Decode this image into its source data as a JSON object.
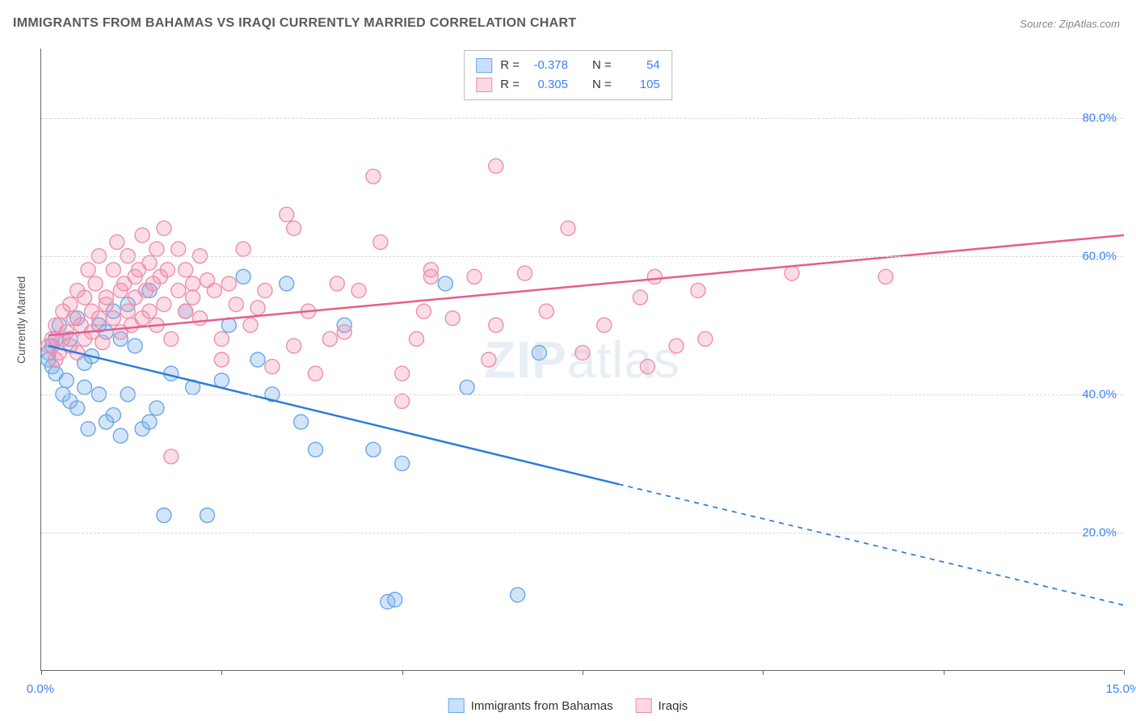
{
  "title": "IMMIGRANTS FROM BAHAMAS VS IRAQI CURRENTLY MARRIED CORRELATION CHART",
  "source_label": "Source:",
  "source_name": "ZipAtlas.com",
  "watermark_bold": "ZIP",
  "watermark_light": "atlas",
  "y_axis_label": "Currently Married",
  "chart": {
    "type": "scatter",
    "xlim": [
      0,
      15
    ],
    "ylim": [
      0,
      90
    ],
    "x_ticks": [
      0,
      2.5,
      5,
      7.5,
      10,
      12.5,
      15
    ],
    "x_tick_labels": {
      "0": "0.0%",
      "15": "15.0%"
    },
    "y_ticks": [
      20,
      40,
      60,
      80
    ],
    "y_tick_labels": {
      "20": "20.0%",
      "40": "40.0%",
      "60": "60.0%",
      "80": "80.0%"
    },
    "background_color": "#ffffff",
    "grid_color": "#d7d7d7",
    "marker_radius": 9,
    "marker_stroke_width": 1.4,
    "line_width": 2.5,
    "series": [
      {
        "name": "Immigrants from Bahamas",
        "fill_color": "rgba(125,180,235,0.35)",
        "stroke_color": "#6ba6e8",
        "line_color": "#2e7dd7",
        "R": "-0.378",
        "N": "54",
        "trend": {
          "x1": 0.1,
          "y1": 47,
          "x2_solid": 8,
          "y2_solid": 27,
          "x2_dash": 15,
          "y2_dash": 9.5
        },
        "points": [
          [
            0.1,
            46
          ],
          [
            0.1,
            45
          ],
          [
            0.15,
            47
          ],
          [
            0.15,
            44
          ],
          [
            0.2,
            48
          ],
          [
            0.2,
            43
          ],
          [
            0.25,
            50
          ],
          [
            0.3,
            40
          ],
          [
            0.35,
            42
          ],
          [
            0.4,
            39
          ],
          [
            0.4,
            48
          ],
          [
            0.5,
            38
          ],
          [
            0.5,
            51
          ],
          [
            0.6,
            41
          ],
          [
            0.6,
            44.5
          ],
          [
            0.65,
            35
          ],
          [
            0.7,
            45.5
          ],
          [
            0.8,
            50
          ],
          [
            0.8,
            40
          ],
          [
            0.9,
            36
          ],
          [
            0.9,
            49
          ],
          [
            1.0,
            37
          ],
          [
            1.0,
            52
          ],
          [
            1.1,
            34
          ],
          [
            1.1,
            48
          ],
          [
            1.2,
            53
          ],
          [
            1.2,
            40
          ],
          [
            1.3,
            47
          ],
          [
            1.4,
            35
          ],
          [
            1.5,
            36
          ],
          [
            1.5,
            55
          ],
          [
            1.7,
            22.5
          ],
          [
            1.6,
            38
          ],
          [
            1.8,
            43
          ],
          [
            2.0,
            52
          ],
          [
            2.1,
            41
          ],
          [
            2.3,
            22.5
          ],
          [
            2.5,
            42
          ],
          [
            2.6,
            50
          ],
          [
            2.8,
            57
          ],
          [
            3.0,
            45
          ],
          [
            3.2,
            40
          ],
          [
            3.4,
            56
          ],
          [
            3.6,
            36
          ],
          [
            3.8,
            32
          ],
          [
            4.2,
            50
          ],
          [
            4.6,
            32
          ],
          [
            4.8,
            10
          ],
          [
            4.9,
            10.3
          ],
          [
            5.0,
            30
          ],
          [
            5.6,
            56
          ],
          [
            5.9,
            41
          ],
          [
            6.9,
            46
          ],
          [
            6.6,
            11
          ]
        ]
      },
      {
        "name": "Iraqis",
        "fill_color": "rgba(244,143,177,0.30)",
        "stroke_color": "#ec8fab",
        "line_color": "#e85d8a",
        "R": "0.305",
        "N": "105",
        "trend": {
          "x1": 0.1,
          "y1": 48.5,
          "x2_solid": 15,
          "y2_solid": 63,
          "x2_dash": 15,
          "y2_dash": 63
        },
        "points": [
          [
            0.1,
            47
          ],
          [
            0.15,
            48
          ],
          [
            0.2,
            45
          ],
          [
            0.2,
            50
          ],
          [
            0.25,
            46
          ],
          [
            0.3,
            52
          ],
          [
            0.3,
            48
          ],
          [
            0.35,
            49
          ],
          [
            0.4,
            53
          ],
          [
            0.4,
            47
          ],
          [
            0.45,
            51
          ],
          [
            0.5,
            55
          ],
          [
            0.5,
            46
          ],
          [
            0.55,
            50
          ],
          [
            0.6,
            54
          ],
          [
            0.6,
            48
          ],
          [
            0.65,
            58
          ],
          [
            0.7,
            52
          ],
          [
            0.7,
            49
          ],
          [
            0.75,
            56
          ],
          [
            0.8,
            51
          ],
          [
            0.8,
            60
          ],
          [
            0.85,
            47.5
          ],
          [
            0.9,
            54
          ],
          [
            0.9,
            53
          ],
          [
            1.0,
            58
          ],
          [
            1.0,
            51
          ],
          [
            1.05,
            62
          ],
          [
            1.1,
            55
          ],
          [
            1.1,
            49
          ],
          [
            1.15,
            56
          ],
          [
            1.2,
            52
          ],
          [
            1.2,
            60
          ],
          [
            1.25,
            50
          ],
          [
            1.3,
            57
          ],
          [
            1.3,
            54
          ],
          [
            1.35,
            58
          ],
          [
            1.4,
            51
          ],
          [
            1.4,
            63
          ],
          [
            1.45,
            55
          ],
          [
            1.5,
            59
          ],
          [
            1.5,
            52
          ],
          [
            1.55,
            56
          ],
          [
            1.6,
            50
          ],
          [
            1.6,
            61
          ],
          [
            1.65,
            57
          ],
          [
            1.7,
            53
          ],
          [
            1.7,
            64
          ],
          [
            1.75,
            58
          ],
          [
            1.8,
            31
          ],
          [
            1.8,
            48
          ],
          [
            1.9,
            55
          ],
          [
            1.9,
            61
          ],
          [
            2.0,
            52
          ],
          [
            2.0,
            58
          ],
          [
            2.1,
            56
          ],
          [
            2.1,
            54
          ],
          [
            2.2,
            60
          ],
          [
            2.2,
            51
          ],
          [
            2.3,
            56.5
          ],
          [
            2.4,
            55
          ],
          [
            2.5,
            48
          ],
          [
            2.5,
            45
          ],
          [
            2.6,
            56
          ],
          [
            2.7,
            53
          ],
          [
            2.8,
            61
          ],
          [
            2.9,
            50
          ],
          [
            3.0,
            52.5
          ],
          [
            3.1,
            55
          ],
          [
            3.2,
            44
          ],
          [
            3.4,
            66
          ],
          [
            3.5,
            64
          ],
          [
            3.5,
            47
          ],
          [
            3.7,
            52
          ],
          [
            3.8,
            43
          ],
          [
            4.0,
            48
          ],
          [
            4.2,
            49
          ],
          [
            4.4,
            55
          ],
          [
            4.6,
            71.5
          ],
          [
            4.7,
            62
          ],
          [
            5.0,
            39
          ],
          [
            5.0,
            43
          ],
          [
            5.2,
            48
          ],
          [
            5.3,
            52
          ],
          [
            5.4,
            57
          ],
          [
            5.4,
            58
          ],
          [
            5.7,
            51
          ],
          [
            6.0,
            57
          ],
          [
            6.2,
            45
          ],
          [
            6.3,
            50
          ],
          [
            6.3,
            73
          ],
          [
            6.7,
            57.5
          ],
          [
            7.0,
            52
          ],
          [
            7.3,
            64
          ],
          [
            7.5,
            46
          ],
          [
            7.8,
            50
          ],
          [
            8.3,
            54
          ],
          [
            8.4,
            44
          ],
          [
            8.5,
            57
          ],
          [
            8.8,
            47
          ],
          [
            9.1,
            55
          ],
          [
            9.2,
            48
          ],
          [
            10.4,
            57.5
          ],
          [
            11.7,
            57
          ],
          [
            4.1,
            56
          ]
        ]
      }
    ]
  },
  "legend_top": {
    "R_label": "R =",
    "N_label": "N ="
  },
  "legend_bottom": {
    "series1": "Immigrants from Bahamas",
    "series2": "Iraqis"
  }
}
